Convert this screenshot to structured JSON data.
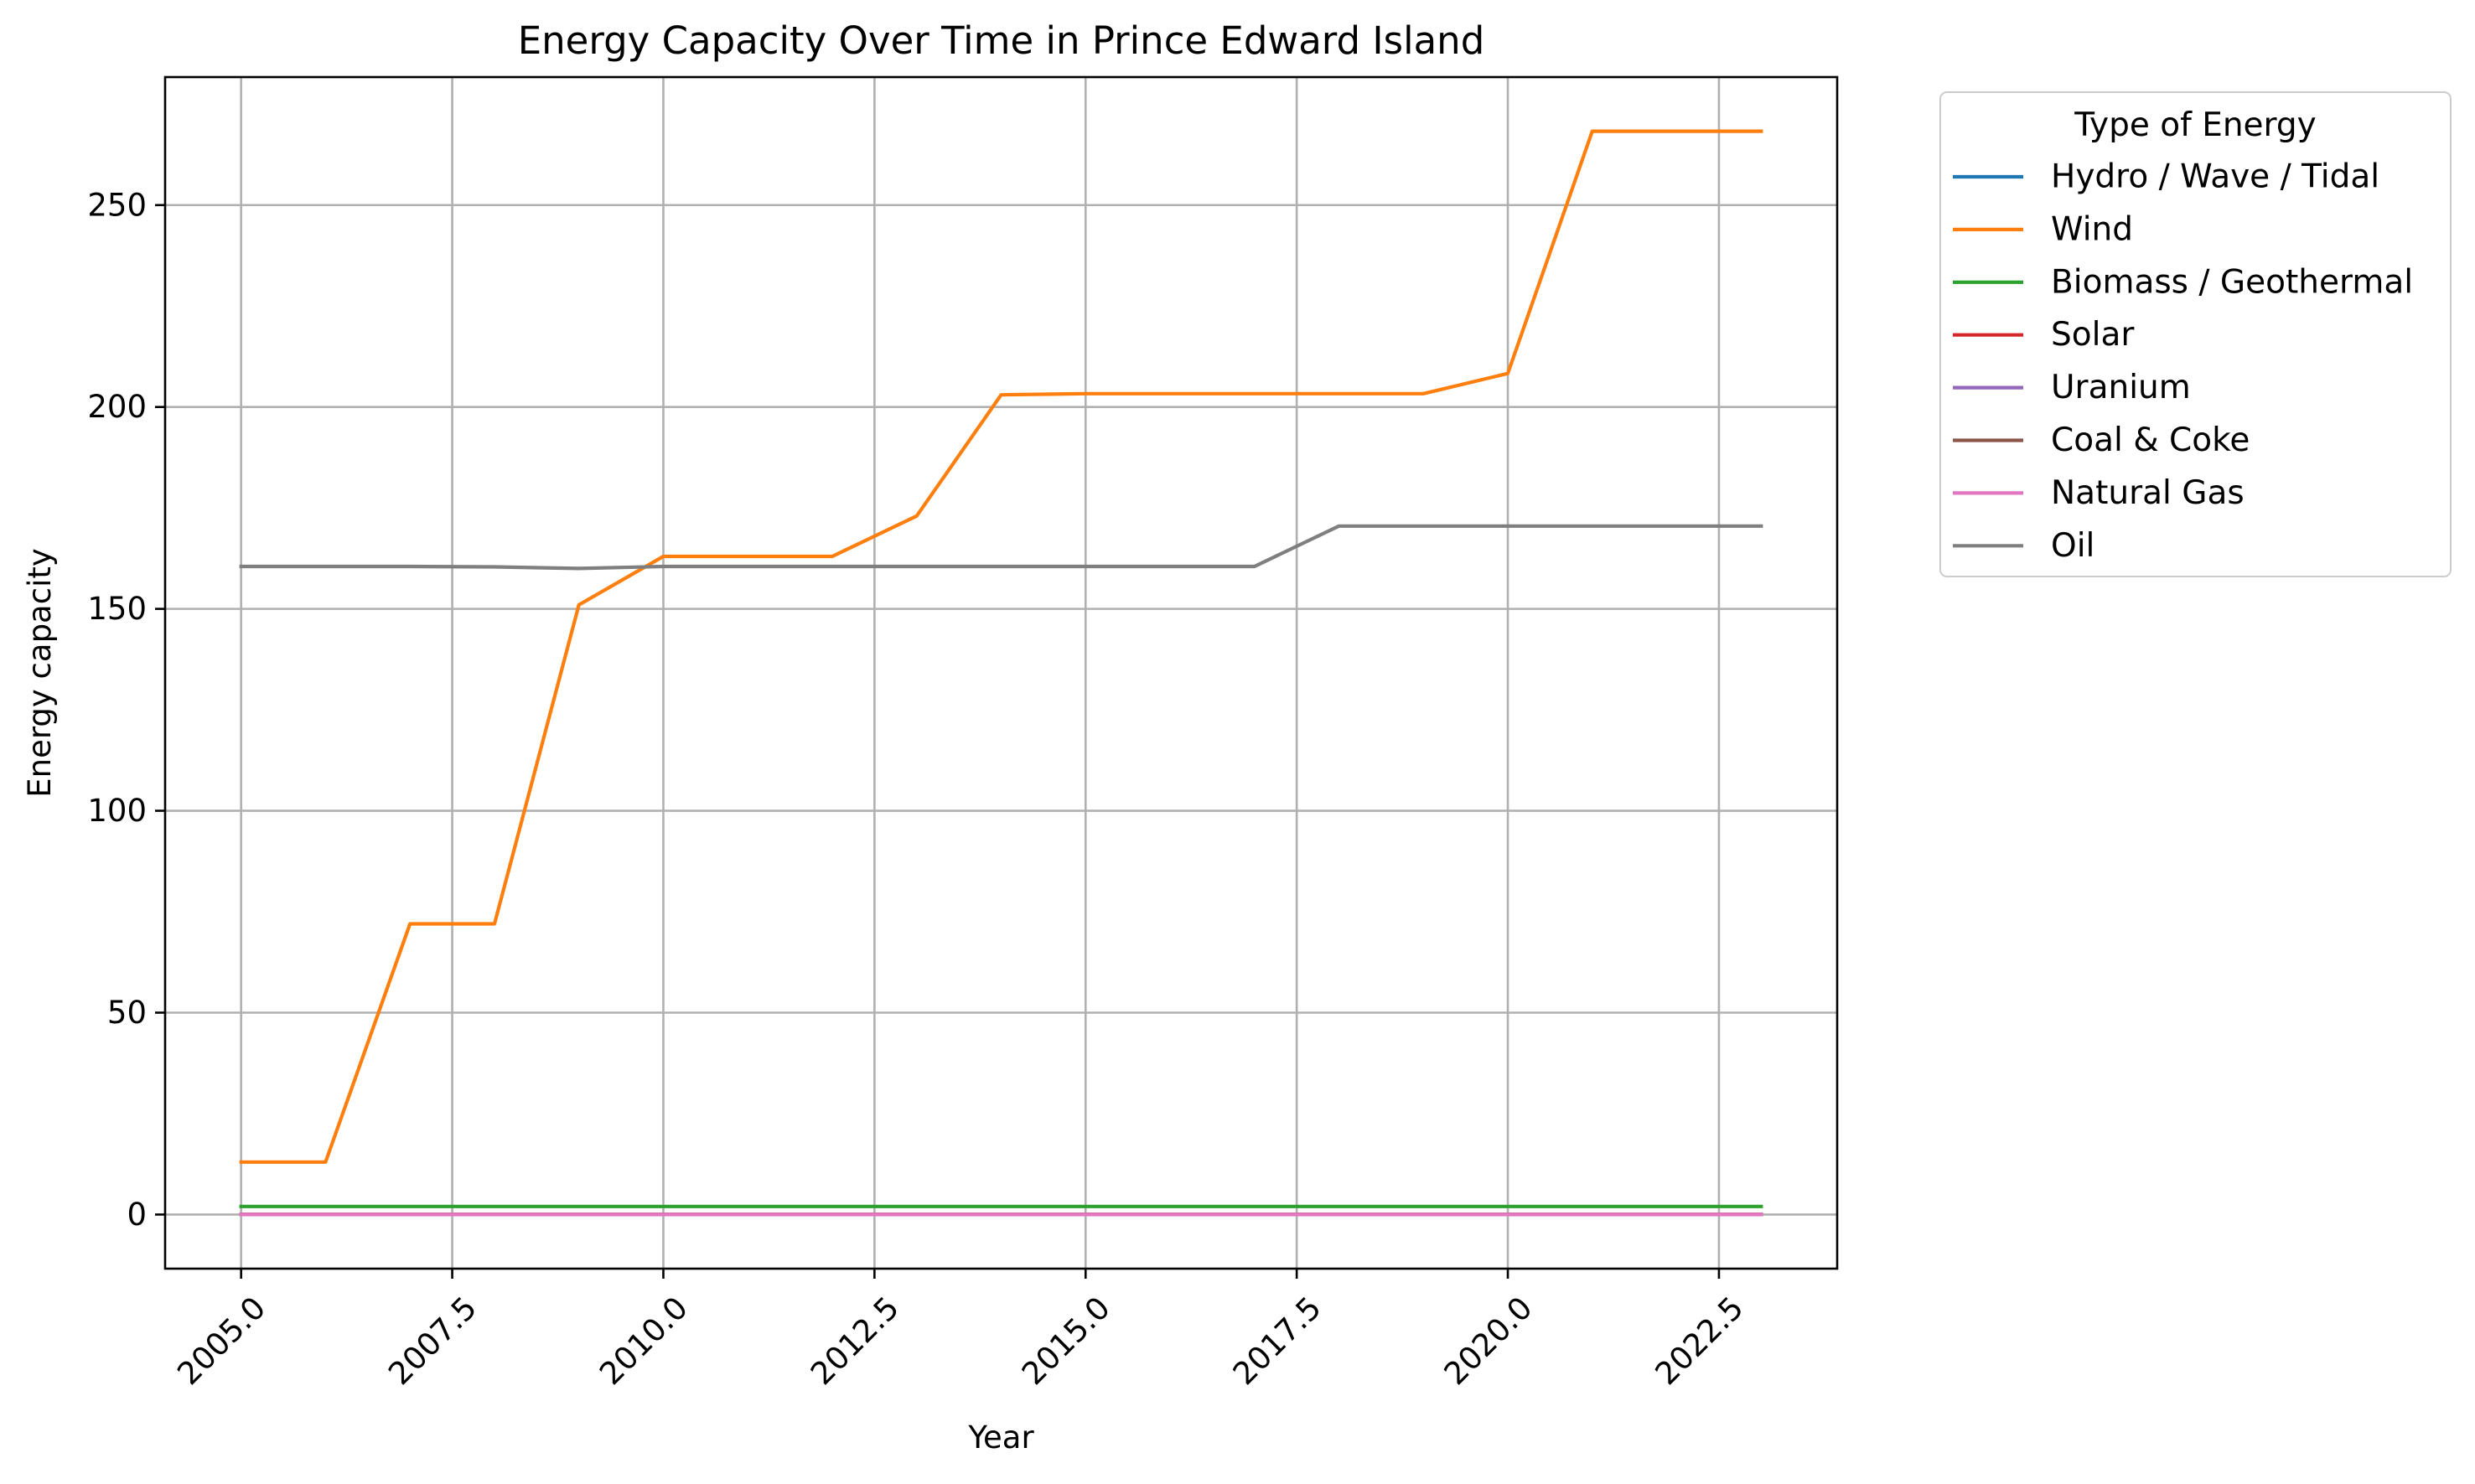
{
  "chart_data": {
    "type": "line",
    "title": "Energy Capacity Over Time in Prince Edward Island",
    "xlabel": "Year",
    "ylabel": "Energy capacity",
    "xlim": [
      2004.1,
      2023.9
    ],
    "ylim": [
      -13.4,
      281.7
    ],
    "grid": true,
    "legend": {
      "title": "Type of Energy",
      "placement": "outside upper right"
    },
    "x_ticks": [
      {
        "value": 2005.0,
        "label": "2005.0"
      },
      {
        "value": 2007.5,
        "label": "2007.5"
      },
      {
        "value": 2010.0,
        "label": "2010.0"
      },
      {
        "value": 2012.5,
        "label": "2012.5"
      },
      {
        "value": 2015.0,
        "label": "2015.0"
      },
      {
        "value": 2017.5,
        "label": "2017.5"
      },
      {
        "value": 2020.0,
        "label": "2020.0"
      },
      {
        "value": 2022.5,
        "label": "2022.5"
      }
    ],
    "y_ticks": [
      {
        "value": 0,
        "label": "0"
      },
      {
        "value": 50,
        "label": "50"
      },
      {
        "value": 100,
        "label": "100"
      },
      {
        "value": 150,
        "label": "150"
      },
      {
        "value": 200,
        "label": "200"
      },
      {
        "value": 250,
        "label": "250"
      }
    ],
    "x": [
      2005,
      2006,
      2007,
      2008,
      2009,
      2010,
      2011,
      2012,
      2013,
      2014,
      2015,
      2016,
      2017,
      2018,
      2019,
      2020,
      2021,
      2022,
      2023
    ],
    "series": [
      {
        "name": "Hydro / Wave / Tidal",
        "color": "#1f77b4",
        "values": [
          0,
          0,
          0,
          0,
          0,
          0,
          0,
          0,
          0,
          0,
          0,
          0,
          0,
          0,
          0,
          0,
          0,
          0,
          0
        ]
      },
      {
        "name": "Wind",
        "color": "#ff7f0e",
        "values": [
          13,
          13,
          72,
          72,
          151,
          163,
          163,
          163,
          173,
          203,
          203.3,
          203.3,
          203.3,
          203.3,
          203.3,
          208.3,
          268.3,
          268.3,
          268.3
        ]
      },
      {
        "name": "Biomass / Geothermal",
        "color": "#2ca02c",
        "values": [
          2,
          2,
          2,
          2,
          2,
          2,
          2,
          2,
          2,
          2,
          2,
          2,
          2,
          2,
          2,
          2,
          2,
          2,
          2
        ]
      },
      {
        "name": "Solar",
        "color": "#d62728",
        "values": [
          0,
          0,
          0,
          0,
          0,
          0,
          0,
          0,
          0,
          0,
          0,
          0,
          0,
          0,
          0,
          0,
          0,
          0,
          0
        ]
      },
      {
        "name": "Uranium",
        "color": "#9467bd",
        "values": [
          0,
          0,
          0,
          0,
          0,
          0,
          0,
          0,
          0,
          0,
          0,
          0,
          0,
          0,
          0,
          0,
          0,
          0,
          0
        ]
      },
      {
        "name": "Coal & Coke",
        "color": "#8c564b",
        "values": [
          0,
          0,
          0,
          0,
          0,
          0,
          0,
          0,
          0,
          0,
          0,
          0,
          0,
          0,
          0,
          0,
          0,
          0,
          0
        ]
      },
      {
        "name": "Natural Gas",
        "color": "#e377c2",
        "values": [
          0,
          0,
          0,
          0,
          0,
          0,
          0,
          0,
          0,
          0,
          0,
          0,
          0,
          0,
          0,
          0,
          0,
          0,
          0
        ]
      },
      {
        "name": "Oil",
        "color": "#7f7f7f",
        "values": [
          160.5,
          160.5,
          160.5,
          160.4,
          160,
          160.5,
          160.5,
          160.5,
          160.5,
          160.5,
          160.5,
          160.5,
          160.5,
          170.5,
          170.5,
          170.5,
          170.5,
          170.5,
          170.5
        ]
      }
    ]
  }
}
